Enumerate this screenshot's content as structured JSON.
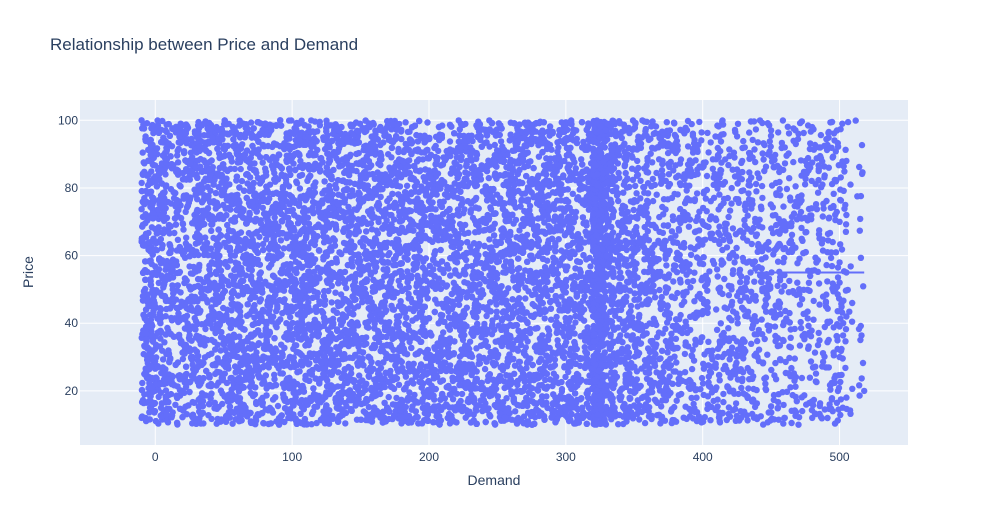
{
  "chart_data": {
    "type": "scatter",
    "title": "Relationship between Price and Demand",
    "xlabel": "Demand",
    "ylabel": "Price",
    "xlim": [
      -55,
      550
    ],
    "ylim": [
      4,
      106
    ],
    "xticks": [
      0,
      100,
      200,
      300,
      400,
      500
    ],
    "yticks": [
      20,
      40,
      60,
      80,
      100
    ],
    "grid": true,
    "colors": {
      "marker": "#636efa",
      "plot_bg": "#e5ecf6",
      "grid": "#ffffff",
      "text": "#2a3f5f"
    },
    "series": [
      {
        "mode": "markers",
        "approx_region": {
          "x": [
            -10,
            520
          ],
          "y": [
            10,
            100
          ]
        },
        "sample_points": [
          [
            -10,
            100
          ],
          [
            -8,
            77
          ],
          [
            -9,
            63
          ],
          [
            -8,
            25
          ],
          [
            -8,
            19
          ],
          [
            -7,
            12
          ],
          [
            450,
            97
          ],
          [
            470,
            96
          ],
          [
            480,
            98
          ],
          [
            485,
            92
          ],
          [
            495,
            89
          ],
          [
            502,
            99
          ],
          [
            505,
            88
          ],
          [
            500,
            70
          ],
          [
            505,
            72
          ],
          [
            508,
            81
          ],
          [
            495,
            64
          ],
          [
            500,
            58
          ],
          [
            505,
            55
          ],
          [
            500,
            52
          ],
          [
            490,
            46
          ],
          [
            505,
            42
          ],
          [
            500,
            30
          ],
          [
            505,
            18
          ],
          [
            518,
            20
          ],
          [
            495,
            14
          ],
          [
            480,
            12
          ],
          [
            470,
            10
          ],
          [
            460,
            12
          ],
          [
            455,
            15
          ],
          [
            440,
            30
          ],
          [
            430,
            44
          ],
          [
            420,
            60
          ],
          [
            435,
            75
          ],
          [
            445,
            85
          ],
          [
            460,
            92
          ]
        ]
      },
      {
        "mode": "lines",
        "x": [
          438,
          518
        ],
        "y": [
          55,
          55
        ]
      }
    ]
  }
}
